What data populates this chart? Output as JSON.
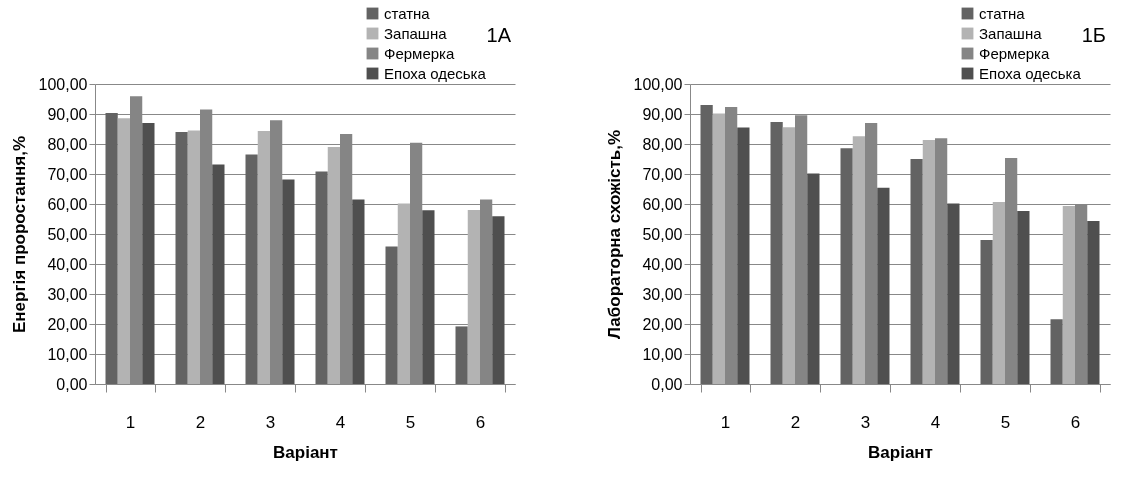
{
  "chart_data": [
    {
      "type": "bar",
      "xlabel": "Варіант",
      "ylabel": "Енергія проростання,%",
      "annotations": [
        "1А"
      ],
      "categories": [
        "1",
        "2",
        "3",
        "4",
        "5",
        "6"
      ],
      "ylim": [
        0,
        100
      ],
      "yticks": [
        {
          "value": 0,
          "label": "0,00"
        },
        {
          "value": 10,
          "label": "10,00"
        },
        {
          "value": 20,
          "label": "20,00"
        },
        {
          "value": 30,
          "label": "30,00"
        },
        {
          "value": 40,
          "label": "40,00"
        },
        {
          "value": 50,
          "label": "50,00"
        },
        {
          "value": 60,
          "label": "60,00"
        },
        {
          "value": 70,
          "label": "70,00"
        },
        {
          "value": 80,
          "label": "80,00"
        },
        {
          "value": 90,
          "label": "90,00"
        },
        {
          "value": 100,
          "label": "100,00"
        }
      ],
      "grid": "y",
      "legend": "top right",
      "series": [
        {
          "name": "статна",
          "color": "#636363",
          "values": [
            90.3,
            84.0,
            76.5,
            70.8,
            45.8,
            19.2
          ]
        },
        {
          "name": "Запашна",
          "color": "#b3b3b3",
          "values": [
            88.6,
            84.5,
            84.3,
            79.0,
            60.2,
            58.0
          ]
        },
        {
          "name": "Фермерка",
          "color": "#858585",
          "values": [
            95.9,
            91.5,
            87.9,
            83.3,
            80.4,
            61.5
          ]
        },
        {
          "name": "Епоха одеська",
          "color": "#4f4f4f",
          "values": [
            87.0,
            73.2,
            68.2,
            61.5,
            57.9,
            55.9
          ]
        }
      ]
    },
    {
      "type": "bar",
      "xlabel": "Варіант",
      "ylabel": "Лабораторна схожість,%",
      "annotations": [
        "1Б"
      ],
      "categories": [
        "1",
        "2",
        "3",
        "4",
        "5",
        "6"
      ],
      "ylim": [
        0,
        100
      ],
      "yticks": [
        {
          "value": 0,
          "label": "0,00"
        },
        {
          "value": 10,
          "label": "10,00"
        },
        {
          "value": 20,
          "label": "20,00"
        },
        {
          "value": 30,
          "label": "30,00"
        },
        {
          "value": 40,
          "label": "40,00"
        },
        {
          "value": 50,
          "label": "50,00"
        },
        {
          "value": 60,
          "label": "60,00"
        },
        {
          "value": 70,
          "label": "70,00"
        },
        {
          "value": 80,
          "label": "80,00"
        },
        {
          "value": 90,
          "label": "90,00"
        },
        {
          "value": 100,
          "label": "100,00"
        }
      ],
      "grid": "y",
      "legend": "top right",
      "series": [
        {
          "name": "статна",
          "color": "#636363",
          "values": [
            93.0,
            87.3,
            78.6,
            75.0,
            48.0,
            21.6
          ]
        },
        {
          "name": "Запашна",
          "color": "#b3b3b3",
          "values": [
            90.2,
            85.6,
            82.6,
            81.3,
            60.7,
            59.3
          ]
        },
        {
          "name": "Фермерка",
          "color": "#858585",
          "values": [
            92.3,
            89.6,
            87.0,
            81.9,
            75.3,
            60.0
          ]
        },
        {
          "name": "Епоха одеська",
          "color": "#4f4f4f",
          "values": [
            85.5,
            70.2,
            65.4,
            60.2,
            57.7,
            54.3
          ]
        }
      ]
    }
  ]
}
